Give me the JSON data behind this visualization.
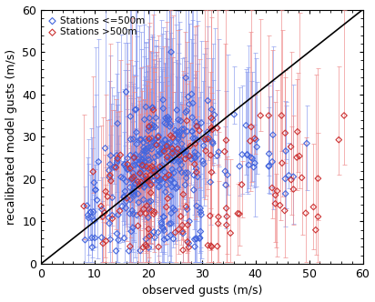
{
  "title": "",
  "xlabel": "observed gusts (m/s)",
  "ylabel": "recalibrated model gusts (m/s)",
  "xlim": [
    0,
    60
  ],
  "ylim": [
    0,
    60
  ],
  "xticks": [
    0,
    10,
    20,
    30,
    40,
    50,
    60
  ],
  "yticks": [
    0,
    10,
    20,
    30,
    40,
    50,
    60
  ],
  "diag_color": "#000000",
  "blue_color": "#4466dd",
  "blue_eb_color": "#8899ee",
  "red_color": "#cc3333",
  "red_eb_color": "#ee8888",
  "blue_label": "Stations <=500m",
  "red_label": "Stations >500m",
  "background": "#ffffff",
  "marker_size": 5,
  "font_size": 9
}
